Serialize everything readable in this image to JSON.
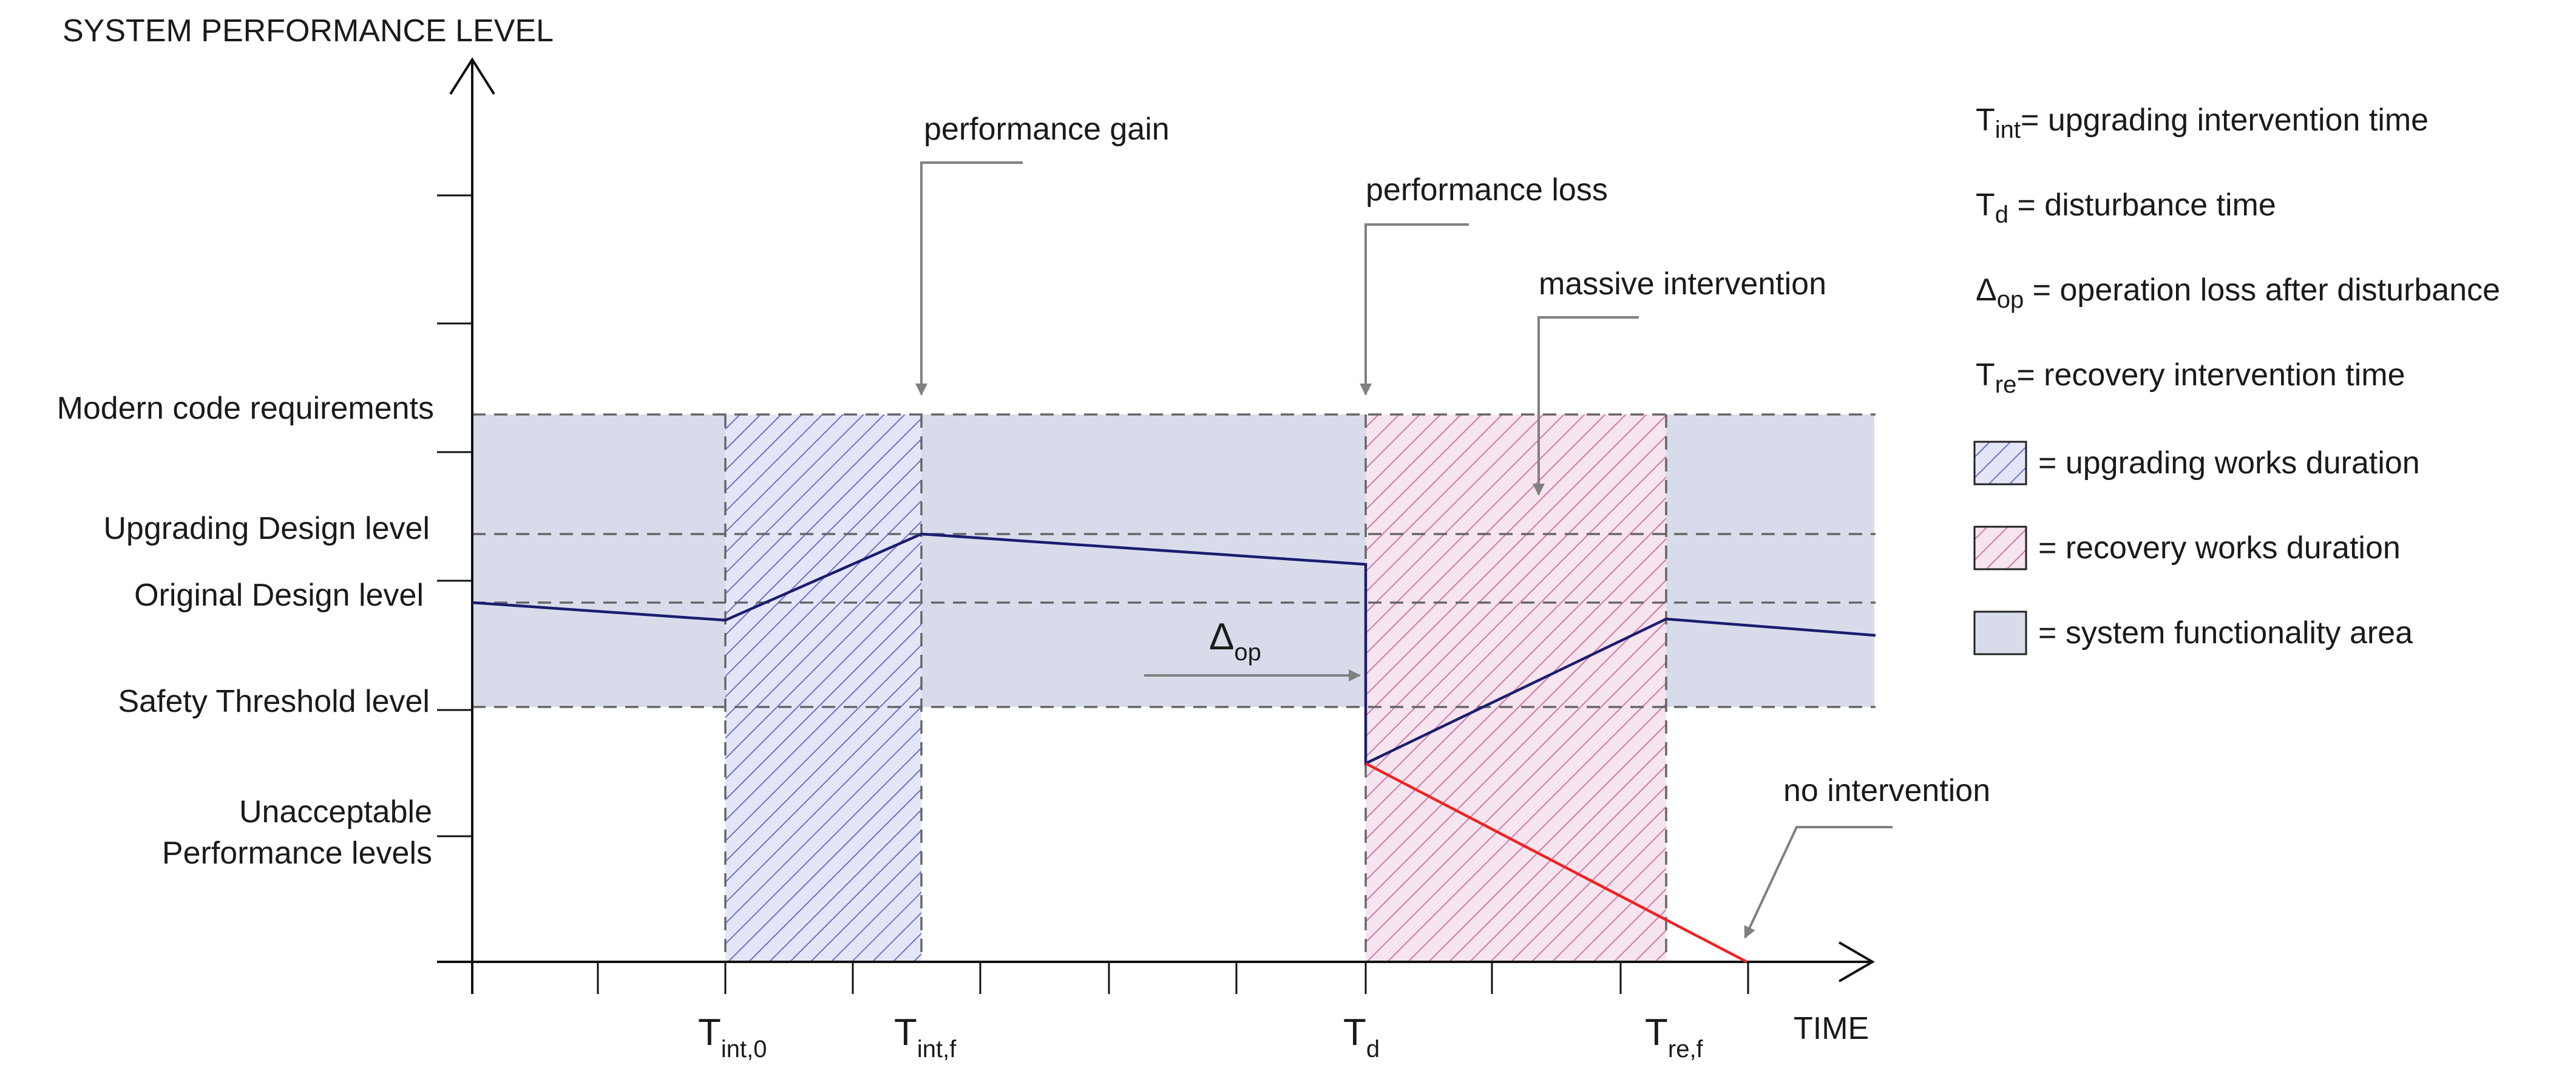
{
  "title": "SYSTEM PERFORMANCE LEVEL",
  "x_axis_label": "TIME",
  "colors": {
    "functionality_fill": "#d8dcea",
    "upgrading_hatch": "#6e72c8",
    "recovery_hatch": "#d27aa6",
    "performance_line": "#1b1d6e",
    "no_intervention_line": "#ee2222",
    "guide_dash": "#666666",
    "axis": "#111111",
    "callout_arrow": "#808080"
  },
  "levels": {
    "modern_code": "Modern code requirements",
    "upgrading_design": "Upgrading Design level",
    "original_design": "Original Design level",
    "safety_threshold": "Safety Threshold level",
    "unacceptable_line1": "Unacceptable",
    "unacceptable_line2": "Performance levels"
  },
  "time_marks": {
    "tint0": {
      "main": "T",
      "sub": "int,0"
    },
    "tintf": {
      "main": "T",
      "sub": "int,f"
    },
    "td": {
      "main": "T",
      "sub": "d"
    },
    "tref": {
      "main": "T",
      "sub": "re,f"
    }
  },
  "annotations": {
    "performance_gain": "performance gain",
    "performance_loss": "performance loss",
    "massive_intervention": "massive intervention",
    "no_intervention": "no intervention",
    "delta_op": {
      "main": "Δ",
      "sub": "op"
    }
  },
  "legend": {
    "tint": {
      "sym": "T",
      "sub": "int",
      "text": "= upgrading intervention time"
    },
    "td": {
      "sym": "T",
      "sub": "d",
      "text": " = disturbance time"
    },
    "delta": {
      "sym": "Δ",
      "sub": "op",
      "text": " = operation loss after disturbance"
    },
    "tre": {
      "sym": "T",
      "sub": "re",
      "text": "= recovery intervention time"
    },
    "upgrading": "= upgrading works duration",
    "recovery": "= recovery works duration",
    "area": "= system functionality area"
  }
}
